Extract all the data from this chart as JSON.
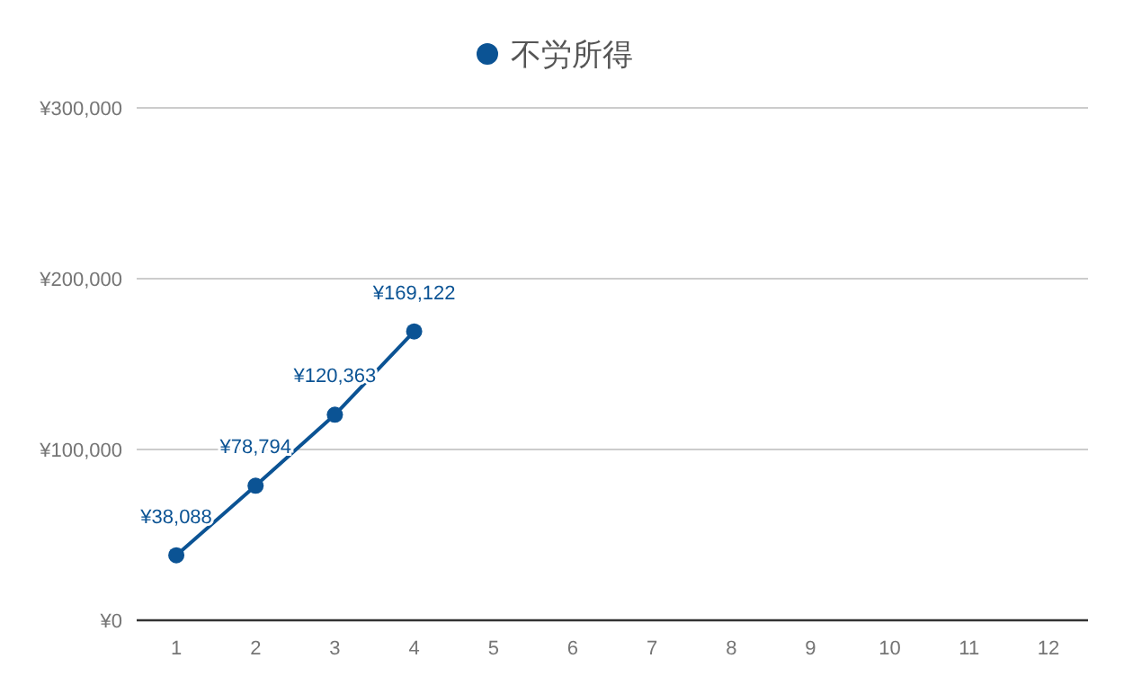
{
  "chart_data": {
    "type": "line",
    "categories": [
      "1",
      "2",
      "3",
      "4",
      "5",
      "6",
      "7",
      "8",
      "9",
      "10",
      "11",
      "12"
    ],
    "series": [
      {
        "name": "不労所得",
        "color": "#0b5394",
        "values": [
          38088,
          78794,
          120363,
          169122,
          null,
          null,
          null,
          null,
          null,
          null,
          null,
          null
        ],
        "value_labels": [
          "¥38,088",
          "¥78,794",
          "¥120,363",
          "¥169,122",
          null,
          null,
          null,
          null,
          null,
          null,
          null,
          null
        ]
      }
    ],
    "ylim": [
      0,
      300000
    ],
    "yticks": [
      {
        "value": 0,
        "label": "¥0"
      },
      {
        "value": 100000,
        "label": "¥100,000"
      },
      {
        "value": 200000,
        "label": "¥200,000"
      },
      {
        "value": 300000,
        "label": "¥300,000"
      }
    ],
    "grid": "y",
    "legend": "top",
    "marker": "circle",
    "line_style": "solid"
  }
}
